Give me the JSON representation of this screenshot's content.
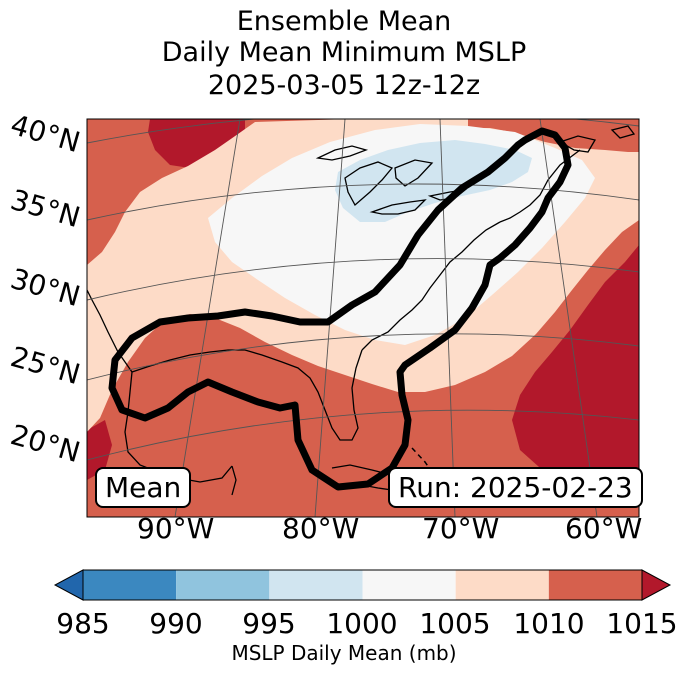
{
  "title": {
    "line1": "Ensemble Mean",
    "line2": "Daily Mean Minimum MSLP",
    "line3": "2025-03-05 12z-12z"
  },
  "map": {
    "lat_labels": [
      "40°N",
      "35°N",
      "30°N",
      "25°N",
      "20°N"
    ],
    "lon_labels": [
      "90°W",
      "80°W",
      "70°W",
      "60°W"
    ],
    "member_label": "Mean",
    "run_label": "Run: 2025-02-23"
  },
  "colorbar": {
    "label": "MSLP Daily Mean (mb)",
    "ticks": [
      "985",
      "990",
      "995",
      "1000",
      "1005",
      "1010",
      "1015"
    ],
    "bins": [
      {
        "from": 985,
        "to": 990,
        "color": "#3b88c0"
      },
      {
        "from": 990,
        "to": 995,
        "color": "#90c4de"
      },
      {
        "from": 995,
        "to": 1000,
        "color": "#d1e5f0"
      },
      {
        "from": 1000,
        "to": 1005,
        "color": "#f7f7f7"
      },
      {
        "from": 1005,
        "to": 1010,
        "color": "#fddbc7"
      },
      {
        "from": 1010,
        "to": 1015,
        "color": "#d6604d"
      }
    ],
    "under_color": "#2166ac",
    "over_color": "#b2182b"
  }
}
